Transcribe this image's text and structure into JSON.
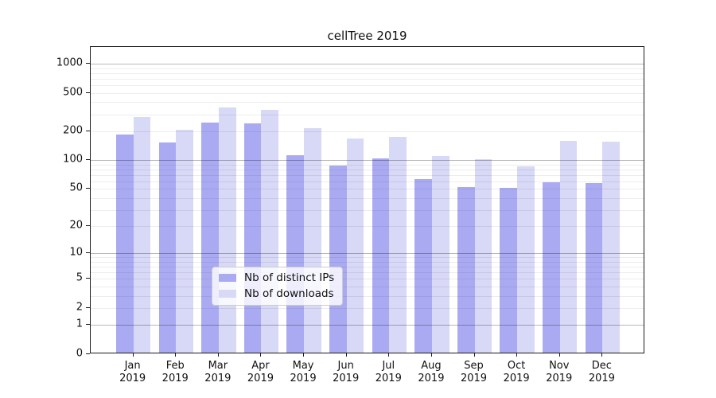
{
  "title": "cellTree 2019",
  "chart_data": {
    "type": "bar",
    "title": "cellTree 2019",
    "yscale": "log1p",
    "ylim": [
      0,
      1490
    ],
    "grid": "on",
    "categories": [
      "Jan",
      "Feb",
      "Mar",
      "Apr",
      "May",
      "Jun",
      "Jul",
      "Aug",
      "Sep",
      "Oct",
      "Nov",
      "Dec"
    ],
    "category_year": "2019",
    "yticks": [
      1000,
      500,
      200,
      100,
      50,
      20,
      10,
      5,
      2,
      1,
      0
    ],
    "major_gridlines": [
      1,
      10,
      100,
      1000
    ],
    "minor_gridline_steps": [
      2,
      3,
      4,
      5,
      6,
      7,
      8,
      9
    ],
    "minor_gridline_decades": [
      1,
      10,
      100
    ],
    "series": [
      {
        "name": "Nb of distinct IPs",
        "color": "#aaaaf2",
        "values": [
          178,
          147,
          237,
          233,
          108,
          85,
          100,
          61,
          50,
          49,
          56,
          55
        ]
      },
      {
        "name": "Nb of downloads",
        "color": "#d8d8f7",
        "values": [
          269,
          198,
          339,
          319,
          207,
          163,
          169,
          106,
          99,
          83,
          152,
          149
        ]
      }
    ],
    "legend": {
      "position": "lower-center",
      "entries": [
        "Nb of distinct IPs",
        "Nb of downloads"
      ]
    }
  }
}
